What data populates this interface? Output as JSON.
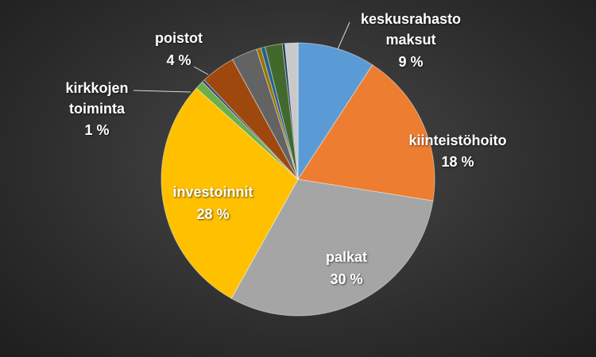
{
  "chart_data": {
    "type": "pie",
    "categories": [
      "keskusrahasto maksut",
      "kiinteistöhoito",
      "palkat",
      "investoinnit",
      "kirkkojen toiminta",
      null,
      "poistot",
      null,
      null,
      null,
      null,
      null,
      null
    ],
    "values": [
      9,
      18,
      30,
      28,
      1,
      0.3,
      4,
      3,
      0.5,
      0.5,
      2,
      0.3,
      1.5
    ],
    "value_labels": [
      "9 %",
      "18 %",
      "30 %",
      "28 %",
      "1 %",
      null,
      "4 %",
      null,
      null,
      null,
      null,
      null,
      null
    ],
    "colors": [
      "#5b9bd5",
      "#ed7d31",
      "#a5a5a5",
      "#ffc000",
      "#70ad47",
      "#264478",
      "#9e480e",
      "#636363",
      "#997300",
      "#255e91",
      "#43682b",
      "#1f3a5f",
      "#c9c9c9"
    ]
  }
}
